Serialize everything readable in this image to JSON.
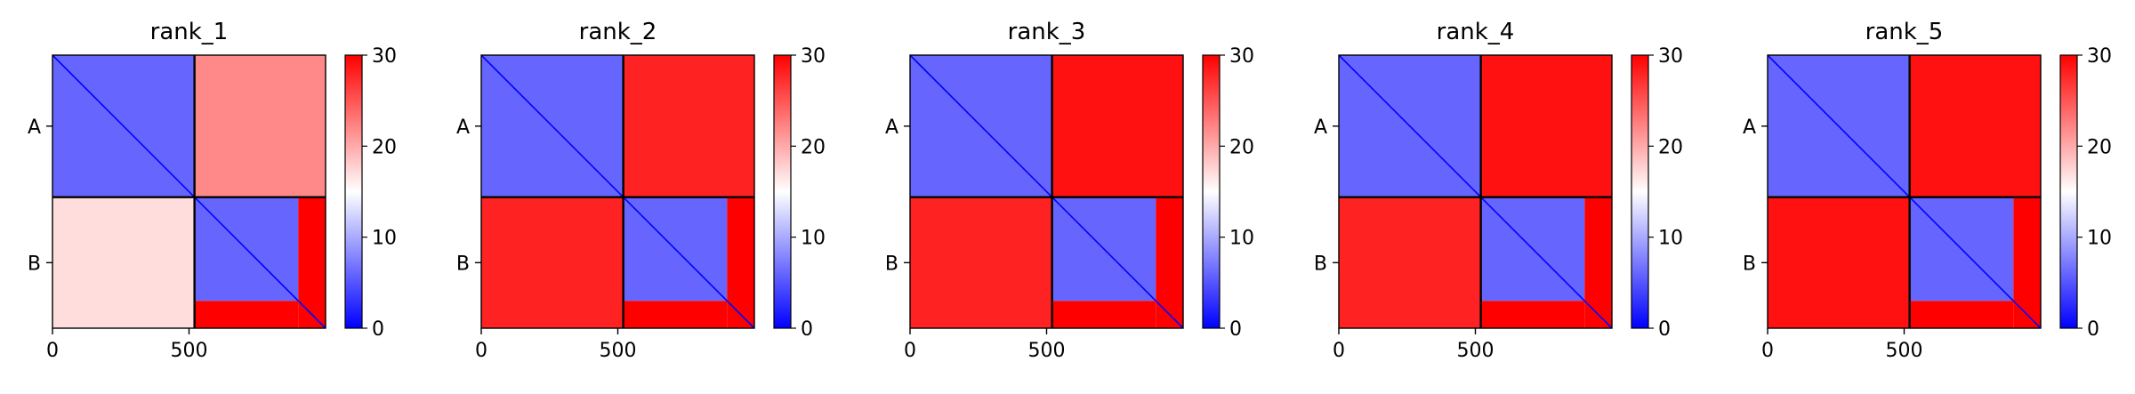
{
  "chart_data": [
    {
      "type": "heatmap",
      "title": "rank_1",
      "chains": [
        {
          "label": "A",
          "start": 0,
          "end": 520
        },
        {
          "label": "B",
          "start": 520,
          "end": 1000
        }
      ],
      "x_ticks": [
        0,
        500
      ],
      "xlim": [
        0,
        1000
      ],
      "colorbar": {
        "min": 0,
        "max": 30,
        "ticks": [
          0,
          10,
          20,
          30
        ],
        "colormap": [
          "#0000ff",
          "#ffffff",
          "#ff0000"
        ]
      },
      "block_values": {
        "AA": 6,
        "AB": 22,
        "BA": 17,
        "BB": 6,
        "B_terminal_tail": 30
      }
    },
    {
      "type": "heatmap",
      "title": "rank_2",
      "chains": [
        {
          "label": "A",
          "start": 0,
          "end": 520
        },
        {
          "label": "B",
          "start": 520,
          "end": 1000
        }
      ],
      "x_ticks": [
        0,
        500
      ],
      "xlim": [
        0,
        1000
      ],
      "colorbar": {
        "min": 0,
        "max": 30,
        "ticks": [
          0,
          10,
          20,
          30
        ],
        "colormap": [
          "#0000ff",
          "#ffffff",
          "#ff0000"
        ]
      },
      "block_values": {
        "AA": 6,
        "AB": 28,
        "BA": 28,
        "BB": 6,
        "B_terminal_tail": 30
      }
    },
    {
      "type": "heatmap",
      "title": "rank_3",
      "chains": [
        {
          "label": "A",
          "start": 0,
          "end": 520
        },
        {
          "label": "B",
          "start": 520,
          "end": 1000
        }
      ],
      "x_ticks": [
        0,
        500
      ],
      "xlim": [
        0,
        1000
      ],
      "colorbar": {
        "min": 0,
        "max": 30,
        "ticks": [
          0,
          10,
          20,
          30
        ],
        "colormap": [
          "#0000ff",
          "#ffffff",
          "#ff0000"
        ]
      },
      "block_values": {
        "AA": 6,
        "AB": 29,
        "BA": 28,
        "BB": 6,
        "B_terminal_tail": 30
      }
    },
    {
      "type": "heatmap",
      "title": "rank_4",
      "chains": [
        {
          "label": "A",
          "start": 0,
          "end": 520
        },
        {
          "label": "B",
          "start": 520,
          "end": 1000
        }
      ],
      "x_ticks": [
        0,
        500
      ],
      "xlim": [
        0,
        1000
      ],
      "colorbar": {
        "min": 0,
        "max": 30,
        "ticks": [
          0,
          10,
          20,
          30
        ],
        "colormap": [
          "#0000ff",
          "#ffffff",
          "#ff0000"
        ]
      },
      "block_values": {
        "AA": 6,
        "AB": 29,
        "BA": 28,
        "BB": 6,
        "B_terminal_tail": 30
      }
    },
    {
      "type": "heatmap",
      "title": "rank_5",
      "chains": [
        {
          "label": "A",
          "start": 0,
          "end": 520
        },
        {
          "label": "B",
          "start": 520,
          "end": 1000
        }
      ],
      "x_ticks": [
        0,
        500
      ],
      "xlim": [
        0,
        1000
      ],
      "colorbar": {
        "min": 0,
        "max": 30,
        "ticks": [
          0,
          10,
          20,
          30
        ],
        "colormap": [
          "#0000ff",
          "#ffffff",
          "#ff0000"
        ]
      },
      "block_values": {
        "AA": 6,
        "AB": 29,
        "BA": 29,
        "BB": 6,
        "B_terminal_tail": 30
      }
    }
  ]
}
